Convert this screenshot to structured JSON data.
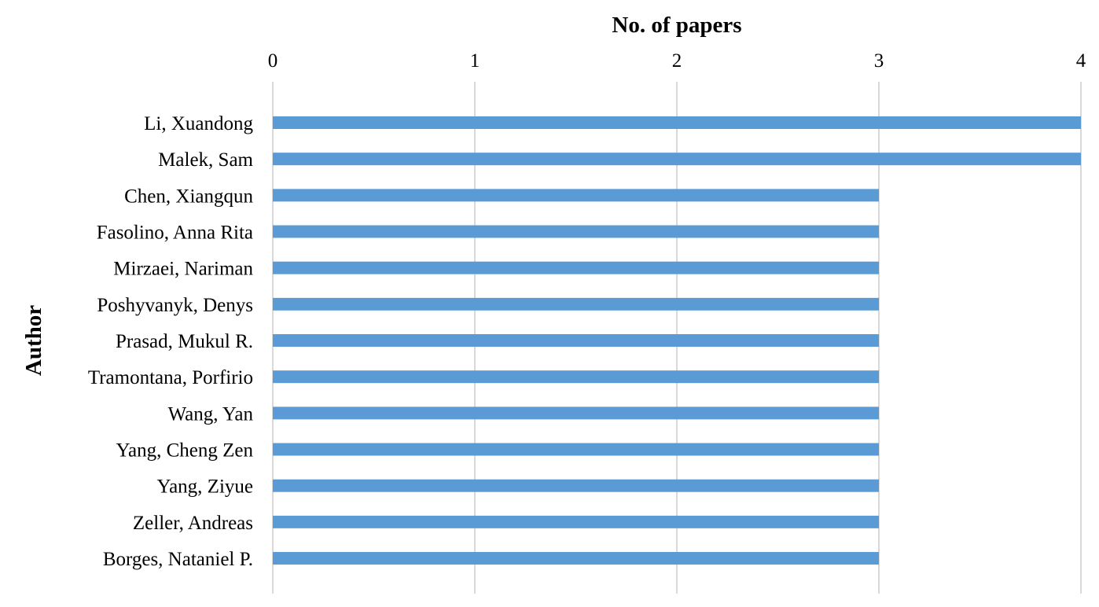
{
  "chart_data": {
    "type": "bar",
    "orientation": "horizontal",
    "xlabel": "No. of papers",
    "ylabel": "Author",
    "x_axis_position": "top",
    "xlim": [
      0,
      4
    ],
    "xticks": [
      "0",
      "1",
      "2",
      "3",
      "4"
    ],
    "grid": true,
    "legend": "none",
    "bar_color": "#5b9bd5",
    "grid_color": "#d9d9d9",
    "categories": [
      "Li, Xuandong",
      "Malek, Sam",
      "Chen, Xiangqun",
      "Fasolino, Anna Rita",
      "Mirzaei, Nariman",
      "Poshyvanyk, Denys",
      "Prasad, Mukul R.",
      "Tramontana, Porfirio",
      "Wang, Yan",
      "Yang, Cheng Zen",
      "Yang, Ziyue",
      "Zeller, Andreas",
      "Borges, Nataniel P."
    ],
    "values": [
      4,
      4,
      3,
      3,
      3,
      3,
      3,
      3,
      3,
      3,
      3,
      3,
      3
    ]
  }
}
